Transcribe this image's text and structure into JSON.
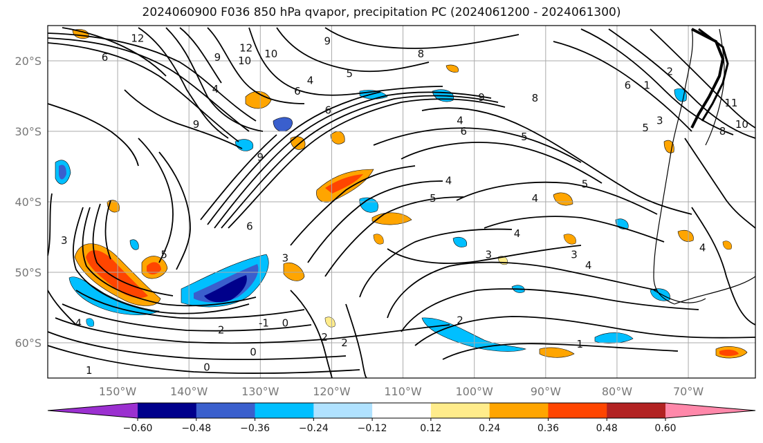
{
  "title": "2024060900 F036 850 hPa qvapor, precipitation PC (2024061200 - 2024061300)",
  "lon_labels": [
    "150°W",
    "140°W",
    "130°W",
    "120°W",
    "110°W",
    "100°W",
    "90°W",
    "80°W",
    "70°W"
  ],
  "lat_labels": [
    "20°S",
    "30°S",
    "40°S",
    "50°S",
    "60°S"
  ],
  "colorbar": {
    "ticks": [
      "−0.60",
      "−0.48",
      "−0.36",
      "−0.24",
      "−0.12",
      "0.12",
      "0.24",
      "0.36",
      "0.48",
      "0.60"
    ],
    "colors": [
      "#9b30d0",
      "#00008b",
      "#3a5fcd",
      "#00bfff",
      "#b0e2ff",
      "#ffffff",
      "#ffec8b",
      "#ffa500",
      "#ff4500",
      "#b22222",
      "#ff88aa"
    ]
  },
  "contour_labels": [
    {
      "text": "12",
      "lon": -147.2,
      "lat": -16.8
    },
    {
      "text": "6",
      "lon": -151.8,
      "lat": -19.5
    },
    {
      "text": "9",
      "lon": -136.0,
      "lat": -19.5
    },
    {
      "text": "12",
      "lon": -132.0,
      "lat": -18.2
    },
    {
      "text": "10",
      "lon": -132.2,
      "lat": -20.0
    },
    {
      "text": "10",
      "lon": -128.5,
      "lat": -19.0
    },
    {
      "text": "8",
      "lon": -107.5,
      "lat": -19.0
    },
    {
      "text": "9",
      "lon": -120.6,
      "lat": -17.2
    },
    {
      "text": "4",
      "lon": -123.0,
      "lat": -22.8
    },
    {
      "text": "5",
      "lon": -117.5,
      "lat": -21.8
    },
    {
      "text": "4",
      "lon": -136.3,
      "lat": -24.0
    },
    {
      "text": "6",
      "lon": -124.8,
      "lat": -24.3
    },
    {
      "text": "9",
      "lon": -99.0,
      "lat": -25.2
    },
    {
      "text": "8",
      "lon": -91.5,
      "lat": -25.3
    },
    {
      "text": "6",
      "lon": -78.5,
      "lat": -23.5
    },
    {
      "text": "1",
      "lon": -75.8,
      "lat": -23.5
    },
    {
      "text": "2",
      "lon": -72.6,
      "lat": -21.5
    },
    {
      "text": "6",
      "lon": -120.5,
      "lat": -27.0
    },
    {
      "text": "9",
      "lon": -139.0,
      "lat": -29.0
    },
    {
      "text": "4",
      "lon": -102.0,
      "lat": -28.5
    },
    {
      "text": "6",
      "lon": -101.5,
      "lat": -30.0
    },
    {
      "text": "5",
      "lon": -93.0,
      "lat": -30.8
    },
    {
      "text": "5",
      "lon": -76.0,
      "lat": -29.5
    },
    {
      "text": "3",
      "lon": -74.0,
      "lat": -28.5
    },
    {
      "text": "11",
      "lon": -64.0,
      "lat": -26.0
    },
    {
      "text": "10",
      "lon": -62.5,
      "lat": -29.0
    },
    {
      "text": "8",
      "lon": -65.2,
      "lat": -30.0
    },
    {
      "text": "9",
      "lon": -130.0,
      "lat": -33.7
    },
    {
      "text": "4",
      "lon": -103.6,
      "lat": -37.0
    },
    {
      "text": "5",
      "lon": -84.5,
      "lat": -37.5
    },
    {
      "text": "5",
      "lon": -105.8,
      "lat": -39.5
    },
    {
      "text": "4",
      "lon": -91.5,
      "lat": -39.5
    },
    {
      "text": "6",
      "lon": -131.5,
      "lat": -43.5
    },
    {
      "text": "4",
      "lon": -94.0,
      "lat": -44.5
    },
    {
      "text": "4",
      "lon": -68.0,
      "lat": -46.5
    },
    {
      "text": "3",
      "lon": -157.5,
      "lat": -45.5
    },
    {
      "text": "5",
      "lon": -143.5,
      "lat": -47.5
    },
    {
      "text": "3",
      "lon": -126.5,
      "lat": -48.0
    },
    {
      "text": "3",
      "lon": -98.0,
      "lat": -47.5
    },
    {
      "text": "3",
      "lon": -86.0,
      "lat": -47.5
    },
    {
      "text": "4",
      "lon": -84.0,
      "lat": -49.0
    },
    {
      "text": "-1",
      "lon": -129.5,
      "lat": -57.2
    },
    {
      "text": "0",
      "lon": -126.5,
      "lat": -57.2
    },
    {
      "text": "4",
      "lon": -155.5,
      "lat": -57.2
    },
    {
      "text": "2",
      "lon": -135.5,
      "lat": -58.2
    },
    {
      "text": "2",
      "lon": -121.0,
      "lat": -59.2
    },
    {
      "text": "2",
      "lon": -118.2,
      "lat": -60.0
    },
    {
      "text": "2",
      "lon": -102.0,
      "lat": -56.8
    },
    {
      "text": "1",
      "lon": -85.2,
      "lat": -60.2
    },
    {
      "text": "0",
      "lon": -131.0,
      "lat": -61.3
    },
    {
      "text": "0",
      "lon": -137.5,
      "lat": -63.5
    },
    {
      "text": "1",
      "lon": -154.0,
      "lat": -63.9
    }
  ]
}
